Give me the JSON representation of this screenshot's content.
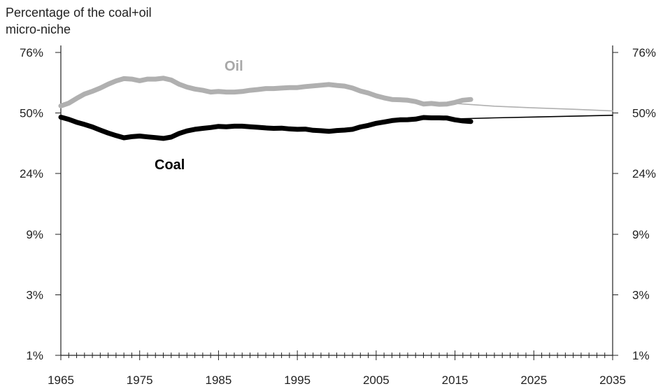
{
  "chart_data": {
    "type": "line",
    "ylabel": "Percentage of the coal+oil\nmicro-niche",
    "y_scale": "log",
    "x_range": [
      1965,
      2035
    ],
    "x_ticks": [
      "1965",
      "1975",
      "1985",
      "1995",
      "2005",
      "2015",
      "2025",
      "2035"
    ],
    "y_ticks_left": [
      "76%",
      "50%",
      "24%",
      "9%",
      "3%",
      "1%"
    ],
    "y_ticks_right": [
      "76%",
      "50%",
      "24%",
      "9%",
      "3%",
      "1%"
    ],
    "grid": false,
    "series": [
      {
        "name": "Oil",
        "color": "#b0b0b0",
        "style": "thick",
        "x": [
          1965,
          1966,
          1967,
          1968,
          1969,
          1970,
          1971,
          1972,
          1973,
          1974,
          1975,
          1976,
          1977,
          1978,
          1979,
          1980,
          1981,
          1982,
          1983,
          1984,
          1985,
          1986,
          1987,
          1988,
          1989,
          1990,
          1991,
          1992,
          1993,
          1994,
          1995,
          1996,
          1997,
          1998,
          1999,
          2000,
          2001,
          2002,
          2003,
          2004,
          2005,
          2006,
          2007,
          2008,
          2009,
          2010,
          2011,
          2012,
          2013,
          2014,
          2015,
          2016,
          2017
        ],
        "values": [
          52.5,
          53.5,
          55.3,
          57.0,
          58.1,
          59.4,
          61.0,
          62.4,
          63.4,
          63.2,
          62.5,
          63.2,
          63.2,
          63.6,
          62.8,
          61.0,
          59.8,
          59.0,
          58.5,
          57.8,
          58.0,
          57.8,
          57.8,
          58.0,
          58.5,
          58.8,
          59.2,
          59.2,
          59.4,
          59.6,
          59.6,
          60.0,
          60.3,
          60.6,
          60.9,
          60.5,
          60.2,
          59.4,
          58.2,
          57.4,
          56.3,
          55.5,
          54.9,
          54.8,
          54.6,
          54.1,
          53.2,
          53.4,
          53.1,
          53.2,
          53.8,
          54.6,
          54.9
        ]
      },
      {
        "name": "Coal",
        "color": "#000000",
        "style": "thick",
        "x": [
          1965,
          1966,
          1967,
          1968,
          1969,
          1970,
          1971,
          1972,
          1973,
          1974,
          1975,
          1976,
          1977,
          1978,
          1979,
          1980,
          1981,
          1982,
          1983,
          1984,
          1985,
          1986,
          1987,
          1988,
          1989,
          1990,
          1991,
          1992,
          1993,
          1994,
          1995,
          1996,
          1997,
          1998,
          1999,
          2000,
          2001,
          2002,
          2003,
          2004,
          2005,
          2006,
          2007,
          2008,
          2009,
          2010,
          2011,
          2012,
          2013,
          2014,
          2015,
          2016,
          2017
        ],
        "values": [
          47.5,
          46.3,
          44.7,
          43.5,
          42.2,
          40.6,
          39.2,
          38.0,
          37.0,
          37.5,
          37.8,
          37.4,
          37.1,
          36.7,
          37.3,
          39.0,
          40.2,
          41.0,
          41.5,
          41.9,
          42.5,
          42.3,
          42.6,
          42.6,
          42.3,
          42.0,
          41.7,
          41.5,
          41.6,
          41.2,
          41.0,
          41.1,
          40.5,
          40.3,
          40.0,
          40.4,
          40.6,
          41.0,
          42.2,
          43.0,
          44.1,
          44.8,
          45.6,
          46.0,
          46.1,
          46.4,
          47.3,
          47.1,
          47.1,
          47.0,
          46.0,
          45.4,
          45.1
        ]
      },
      {
        "name": "Oil forecast",
        "color": "#b0b0b0",
        "style": "thin",
        "x": [
          2014,
          2020,
          2025,
          2030,
          2035
        ],
        "values": [
          53.6,
          52.4,
          51.8,
          51.3,
          50.7
        ]
      },
      {
        "name": "Coal forecast",
        "color": "#000000",
        "style": "thin",
        "x": [
          2014,
          2020,
          2025,
          2030,
          2035
        ],
        "values": [
          46.4,
          47.1,
          47.6,
          48.1,
          48.6
        ]
      }
    ],
    "annotations": [
      {
        "text": "Oil",
        "x": 1999,
        "y": 73,
        "color": "#a8a8a8"
      },
      {
        "text": "Coal",
        "x": 1975,
        "y": 29.5,
        "color": "#000000"
      }
    ]
  }
}
